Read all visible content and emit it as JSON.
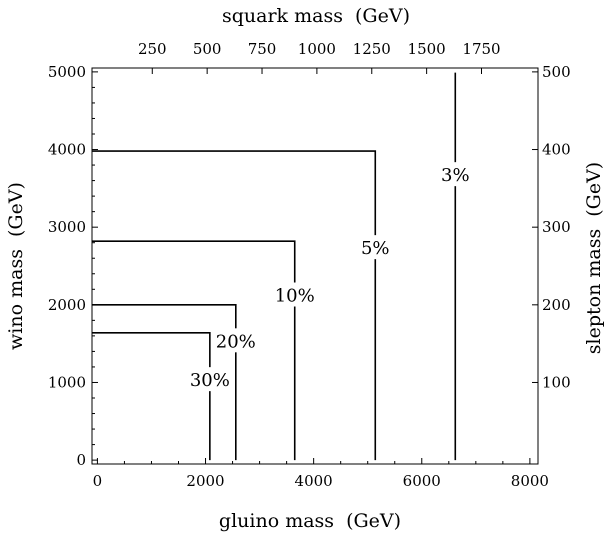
{
  "chart_data": {
    "type": "line",
    "axes": {
      "bottom": {
        "label": "gluino mass",
        "unit": "(GeV)",
        "range": [
          -100,
          8150
        ],
        "ticks": [
          0,
          2000,
          4000,
          6000,
          8000
        ],
        "tick_labels": [
          "0",
          "2000",
          "4000",
          "6000",
          "8000"
        ],
        "minor_step": 500
      },
      "left": {
        "label": "wino mass",
        "unit": "(GeV)",
        "range": [
          -50,
          5050
        ],
        "ticks": [
          0,
          1000,
          2000,
          3000,
          4000,
          5000
        ],
        "tick_labels": [
          "0",
          "1000",
          "2000",
          "3000",
          "4000",
          "5000"
        ],
        "minor_step": 200
      },
      "top": {
        "label": "squark mass",
        "unit": "(GeV)",
        "ticks": [
          250,
          500,
          750,
          1000,
          1250,
          1500,
          1750
        ],
        "tick_labels": [
          "250",
          "500",
          "750",
          "1000",
          "1250",
          "1500",
          "1750"
        ]
      },
      "right": {
        "label": "slepton mass",
        "unit": "(GeV)",
        "ticks": [
          100,
          200,
          300,
          400,
          500
        ],
        "tick_labels": [
          "100",
          "200",
          "300",
          "400",
          "500"
        ]
      }
    },
    "series": [
      {
        "label": "30%",
        "x": [
          -100,
          2080,
          2080
        ],
        "y": [
          1640,
          1640,
          0
        ],
        "label_at": [
          2080,
          1030
        ]
      },
      {
        "label": "20%",
        "x": [
          -100,
          2560,
          2560
        ],
        "y": [
          2000,
          2000,
          0
        ],
        "label_at": [
          2560,
          1530
        ]
      },
      {
        "label": "10%",
        "x": [
          -100,
          3650,
          3650
        ],
        "y": [
          2820,
          2820,
          0
        ],
        "label_at": [
          3650,
          2120
        ]
      },
      {
        "label": "5%",
        "x": [
          -100,
          5140,
          5140
        ],
        "y": [
          3980,
          3980,
          0
        ],
        "label_at": [
          5140,
          2730
        ]
      },
      {
        "label": "3%",
        "x": [
          6620,
          6620
        ],
        "y": [
          4990,
          0
        ],
        "label_at": [
          6620,
          3670
        ]
      }
    ],
    "grid": false,
    "legend": "none"
  }
}
